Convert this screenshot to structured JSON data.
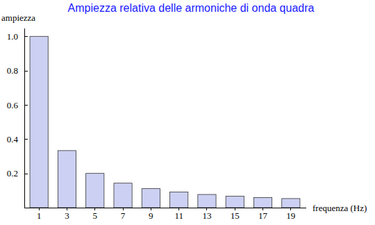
{
  "chart_data": {
    "type": "bar",
    "title": "Ampiezza relativa delle armoniche di onda quadra",
    "y_label": "ampiezza",
    "x_label": "frequenza (Hz)",
    "categories": [
      "1",
      "3",
      "5",
      "7",
      "9",
      "11",
      "13",
      "15",
      "17",
      "19"
    ],
    "values": [
      1.0,
      0.333,
      0.2,
      0.143,
      0.111,
      0.091,
      0.077,
      0.067,
      0.059,
      0.053
    ],
    "color": "#ccd0f2",
    "ylim": [
      0,
      1.05
    ],
    "yticks": [
      0.2,
      0.4,
      0.6,
      0.8,
      {
        "value": 1,
        "label": "1.0"
      }
    ],
    "grid": false
  }
}
